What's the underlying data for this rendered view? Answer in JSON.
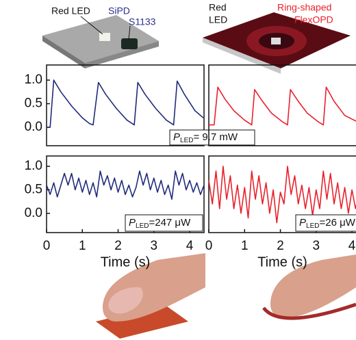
{
  "illustrations": {
    "left": {
      "led": "Red LED",
      "pd": "SiPD",
      "model": "S1133"
    },
    "right": {
      "led": [
        "Red",
        "LED"
      ],
      "opd": [
        "Ring-shaped",
        "FlexOPD"
      ]
    }
  },
  "chart_data": [
    {
      "type": "line",
      "color": "#1f2a7a",
      "xlim": [
        0,
        4.4
      ],
      "ylim": [
        -0.39,
        1.32
      ],
      "yticks": [
        {
          "value": 0,
          "label": "0.0"
        },
        {
          "value": 0.5,
          "label": "0.5"
        },
        {
          "value": 1,
          "label": "1.0"
        }
      ],
      "x": [
        0,
        0.1,
        0.2,
        0.4,
        0.7,
        1.0,
        1.2,
        1.3,
        1.45,
        1.65,
        1.95,
        2.25,
        2.45,
        2.55,
        2.75,
        3.05,
        3.35,
        3.55,
        3.65,
        3.85,
        4.15,
        4.38
      ],
      "values": [
        0,
        0,
        1.0,
        0.75,
        0.45,
        0.2,
        0.08,
        0.05,
        0.95,
        0.7,
        0.4,
        0.15,
        0.05,
        0.95,
        0.7,
        0.4,
        0.15,
        0.05,
        0.98,
        0.7,
        0.35,
        0.2
      ],
      "annotation": {
        "symbol": "P",
        "subscript": "LED",
        "text": "= 9.7 mW"
      }
    },
    {
      "type": "line",
      "color": "#e8202a",
      "xlim": [
        0,
        4.4
      ],
      "ylim": [
        -0.39,
        1.32
      ],
      "x": [
        0,
        0.15,
        0.25,
        0.45,
        0.7,
        1.0,
        1.2,
        1.28,
        1.5,
        1.75,
        2.05,
        2.2,
        2.28,
        2.5,
        2.75,
        3.05,
        3.2,
        3.28,
        3.5,
        3.8,
        4.2
      ],
      "values": [
        0.05,
        0.05,
        0.85,
        0.6,
        0.35,
        0.15,
        0.05,
        0.8,
        0.55,
        0.3,
        0.12,
        0.05,
        0.8,
        0.55,
        0.3,
        0.12,
        0.05,
        0.85,
        0.55,
        0.25,
        0.1
      ]
    },
    {
      "type": "line",
      "color": "#1f2a7a",
      "xlim": [
        0,
        4.4
      ],
      "ylim": [
        -0.41,
        1.22
      ],
      "xlabel": "Time (s)",
      "xticks": [
        0,
        1,
        2,
        3,
        4
      ],
      "yticks": [
        {
          "value": 0,
          "label": "0.0"
        },
        {
          "value": 0.5,
          "label": "0.5"
        },
        {
          "value": 1,
          "label": "1.0"
        }
      ],
      "x": [
        0,
        0.1,
        0.2,
        0.3,
        0.4,
        0.5,
        0.6,
        0.7,
        0.8,
        0.9,
        1.0,
        1.1,
        1.2,
        1.3,
        1.4,
        1.5,
        1.6,
        1.7,
        1.8,
        1.9,
        2.0,
        2.1,
        2.2,
        2.3,
        2.4,
        2.5,
        2.6,
        2.7,
        2.8,
        2.9,
        3.0,
        3.1,
        3.2,
        3.3,
        3.4,
        3.5,
        3.6,
        3.7,
        3.8,
        3.9,
        4.0,
        4.1,
        4.2,
        4.3,
        4.4
      ],
      "values": [
        0.6,
        0.4,
        0.65,
        0.35,
        0.6,
        0.85,
        0.6,
        0.85,
        0.5,
        0.75,
        0.45,
        0.7,
        0.4,
        0.65,
        0.35,
        0.9,
        0.6,
        0.8,
        0.5,
        0.75,
        0.45,
        0.7,
        0.4,
        0.6,
        0.35,
        0.55,
        0.9,
        0.6,
        0.85,
        0.5,
        0.75,
        0.45,
        0.7,
        0.4,
        0.6,
        0.3,
        0.9,
        0.6,
        0.85,
        0.5,
        0.7,
        0.45,
        0.65,
        0.4,
        0.6
      ],
      "annotation": {
        "symbol": "P",
        "subscript": "LED",
        "text": "=247 μW"
      }
    },
    {
      "type": "line",
      "color": "#e8202a",
      "xlim": [
        0,
        4.4
      ],
      "ylim": [
        -0.41,
        1.22
      ],
      "xlabel": "Time (s)",
      "xticks": [
        0,
        1,
        2,
        3,
        4
      ],
      "x": [
        0,
        0.1,
        0.2,
        0.3,
        0.4,
        0.5,
        0.6,
        0.7,
        0.8,
        0.9,
        1.0,
        1.1,
        1.2,
        1.3,
        1.4,
        1.5,
        1.6,
        1.7,
        1.8,
        1.9,
        2.0,
        2.1,
        2.2,
        2.3,
        2.4,
        2.5,
        2.6,
        2.7,
        2.8,
        2.9,
        3.0,
        3.1,
        3.2,
        3.3,
        3.4,
        3.5,
        3.6,
        3.7,
        3.8,
        3.9,
        4.0,
        4.1,
        4.2
      ],
      "values": [
        0.7,
        0.2,
        0.9,
        0.1,
        1.0,
        0.3,
        0.8,
        0.1,
        0.6,
        0.0,
        0.55,
        -0.1,
        0.9,
        0.3,
        0.8,
        0.2,
        0.65,
        0.0,
        0.5,
        -0.2,
        0.45,
        0.2,
        1.0,
        0.4,
        0.8,
        0.2,
        0.6,
        0.1,
        0.55,
        -0.05,
        0.5,
        0.1,
        0.9,
        0.3,
        0.85,
        0.2,
        0.65,
        0.1,
        0.55,
        0.0,
        0.5,
        0.1,
        0.45
      ],
      "annotation": {
        "symbol": "P",
        "subscript": "LED",
        "text": "=26 μW"
      }
    }
  ]
}
